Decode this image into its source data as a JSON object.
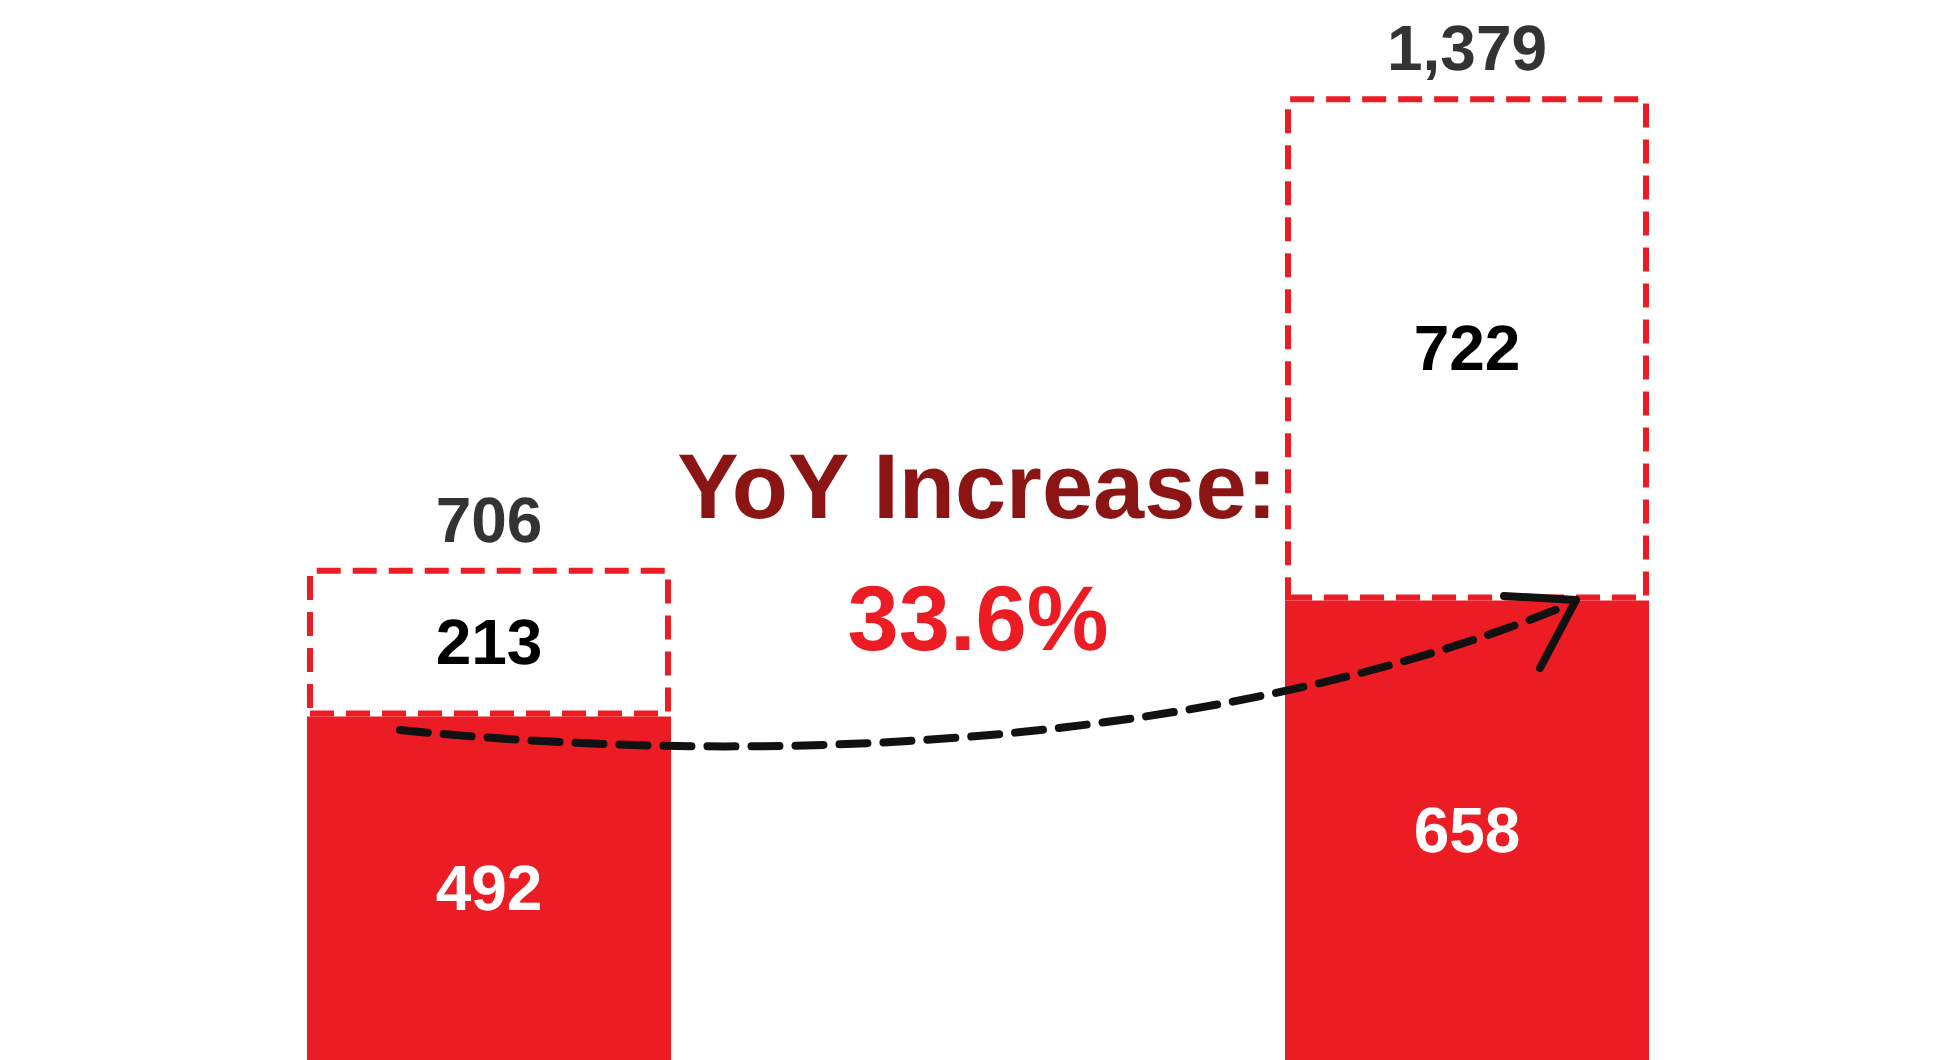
{
  "chart_data": {
    "type": "bar",
    "stacked": true,
    "categories": [
      null,
      null
    ],
    "series": [
      {
        "color": "#ec1c24",
        "values": [
          492,
          658
        ]
      },
      {
        "color": "#ec1c24",
        "line_style": "dashed",
        "values": [
          213,
          722
        ]
      }
    ],
    "data_labels": true,
    "totals": [
      "706",
      "1,379"
    ],
    "annotations": [
      "YoY Increase:",
      "33.6%"
    ]
  }
}
